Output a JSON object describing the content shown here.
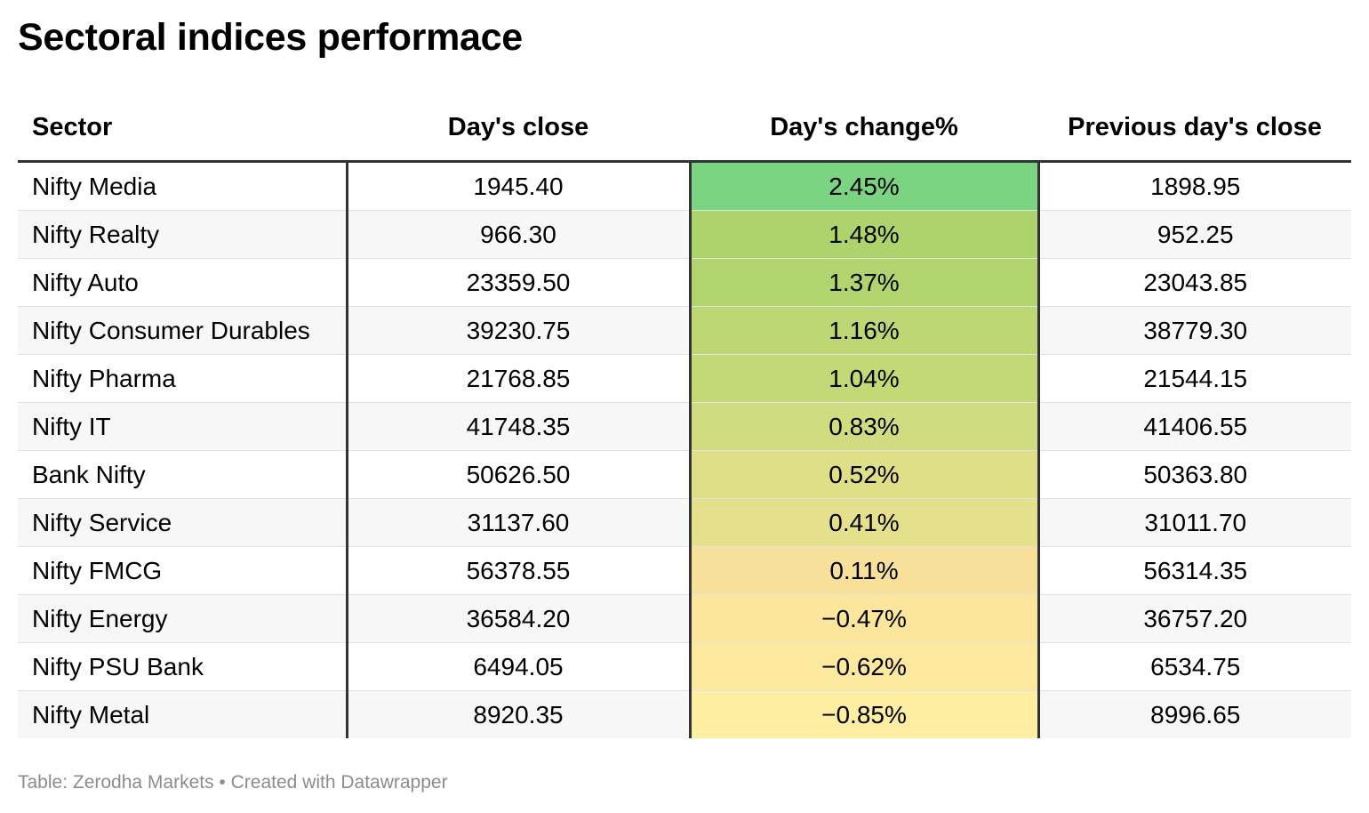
{
  "title": "Sectoral indices performace",
  "footer": "Table: Zerodha Markets • Created with Datawrapper",
  "columns": [
    "Sector",
    "Day's close",
    "Day's change%",
    "Previous day's close"
  ],
  "chart_data": {
    "type": "table",
    "title": "Sectoral indices performace",
    "columns": [
      "Sector",
      "Day's close",
      "Day's change%",
      "Previous day's close"
    ],
    "rows": [
      {
        "sector": "Nifty Media",
        "close": "1945.40",
        "change": "2.45%",
        "prev": "1898.95",
        "color": "#7ad482"
      },
      {
        "sector": "Nifty Realty",
        "close": "966.30",
        "change": "1.48%",
        "prev": "952.25",
        "color": "#aed36c"
      },
      {
        "sector": "Nifty Auto",
        "close": "23359.50",
        "change": "1.37%",
        "prev": "23043.85",
        "color": "#b2d46e"
      },
      {
        "sector": "Nifty Consumer Durables",
        "close": "39230.75",
        "change": "1.16%",
        "prev": "38779.30",
        "color": "#bcd774"
      },
      {
        "sector": "Nifty Pharma",
        "close": "21768.85",
        "change": "1.04%",
        "prev": "21544.15",
        "color": "#c2d976"
      },
      {
        "sector": "Nifty IT",
        "close": "41748.35",
        "change": "0.83%",
        "prev": "41406.55",
        "color": "#d1dc80"
      },
      {
        "sector": "Bank Nifty",
        "close": "50626.50",
        "change": "0.52%",
        "prev": "50363.80",
        "color": "#dfdf88"
      },
      {
        "sector": "Nifty Service",
        "close": "31137.60",
        "change": "0.41%",
        "prev": "31011.70",
        "color": "#e5e08c"
      },
      {
        "sector": "Nifty FMCG",
        "close": "56378.55",
        "change": "0.11%",
        "prev": "56314.35",
        "color": "#f7e19a"
      },
      {
        "sector": "Nifty Energy",
        "close": "36584.20",
        "change": "−0.47%",
        "prev": "36757.20",
        "color": "#fbe69c"
      },
      {
        "sector": "Nifty PSU Bank",
        "close": "6494.05",
        "change": "−0.62%",
        "prev": "6534.75",
        "color": "#fce99e"
      },
      {
        "sector": "Nifty Metal",
        "close": "8920.35",
        "change": "−0.85%",
        "prev": "8996.65",
        "color": "#fdeea1"
      }
    ]
  }
}
